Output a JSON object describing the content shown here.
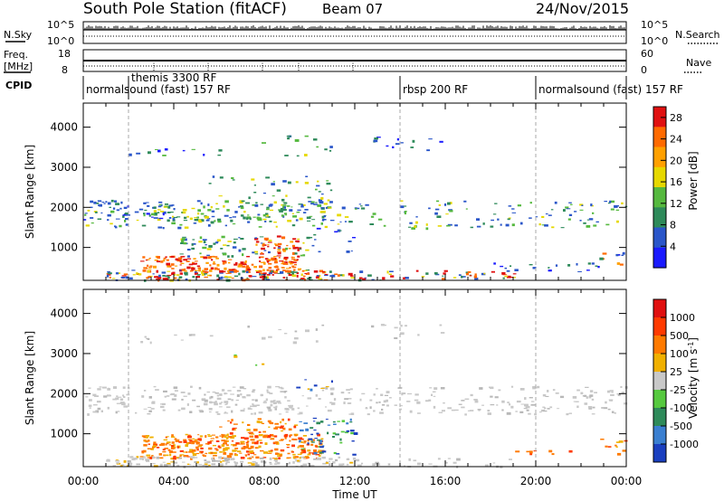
{
  "header": {
    "station": "South Pole Station (fitACF)",
    "beam": "Beam 07",
    "date": "24/Nov/2015"
  },
  "strip_labels": {
    "nsky": "N.Sky",
    "nsearch": "N.Search",
    "freq_line1": "Freq.",
    "freq_line2": "[MHz]",
    "nave": "Nave",
    "cpid": "CPID",
    "nsky_ticks": [
      "10^5",
      "10^0"
    ],
    "nsearch_ticks": [
      "10^5",
      "10^0"
    ],
    "freq_ticks": [
      "18",
      "8"
    ],
    "nave_ticks": [
      "60",
      "0"
    ]
  },
  "cpid_segments": [
    {
      "label": "normalsound (fast) 157 RF",
      "start_hour": 0.0,
      "end_hour": 2.0
    },
    {
      "label": "themis 3300 RF",
      "start_hour": 2.0,
      "end_hour": 14.0
    },
    {
      "label": "rbsp 200 RF",
      "start_hour": 14.0,
      "end_hour": 20.0
    },
    {
      "label": "normalsound (fast) 157 RF",
      "start_hour": 20.0,
      "end_hour": 24.0
    }
  ],
  "chart_data": [
    {
      "type": "heatmap",
      "name": "power",
      "xlabel": "Time UT",
      "ylabel": "Slant Range [km]",
      "xlim": [
        0,
        24
      ],
      "ylim": [
        180,
        4600
      ],
      "xticks": [
        "00:00",
        "04:00",
        "08:00",
        "12:00",
        "16:00",
        "20:00",
        "00:00"
      ],
      "yticks": [
        1000,
        2000,
        3000,
        4000
      ],
      "colorbar_label": "Power [dB]",
      "colorbar_ticks": [
        4,
        8,
        12,
        16,
        20,
        24,
        28
      ],
      "colorbar_range": [
        0,
        30
      ],
      "colorbar_colors": [
        "#1a1aff",
        "#2a56c9",
        "#2e8a5a",
        "#56b93f",
        "#e6d800",
        "#ffa000",
        "#ff6a00",
        "#e01010"
      ]
    },
    {
      "type": "heatmap",
      "name": "velocity",
      "xlabel": "Time UT",
      "ylabel": "Slant Range [km]",
      "xlim": [
        0,
        24
      ],
      "ylim": [
        180,
        4600
      ],
      "xticks": [
        "00:00",
        "04:00",
        "08:00",
        "12:00",
        "16:00",
        "20:00",
        "00:00"
      ],
      "yticks": [
        1000,
        2000,
        3000,
        4000
      ],
      "colorbar_label": "Velocity [m s",
      "colorbar_label_sup": "-1",
      "colorbar_label_end": "]",
      "colorbar_ticks": [
        "1000",
        "500",
        "100",
        "25",
        "-25",
        "-100",
        "-500",
        "-1000"
      ],
      "colorbar_colors": [
        "#1a3fbf",
        "#3a7fd0",
        "#2e8a5a",
        "#56c93f",
        "#c8c8c8",
        "#f0b000",
        "#ff7a00",
        "#ff3a00",
        "#e01010"
      ]
    }
  ]
}
